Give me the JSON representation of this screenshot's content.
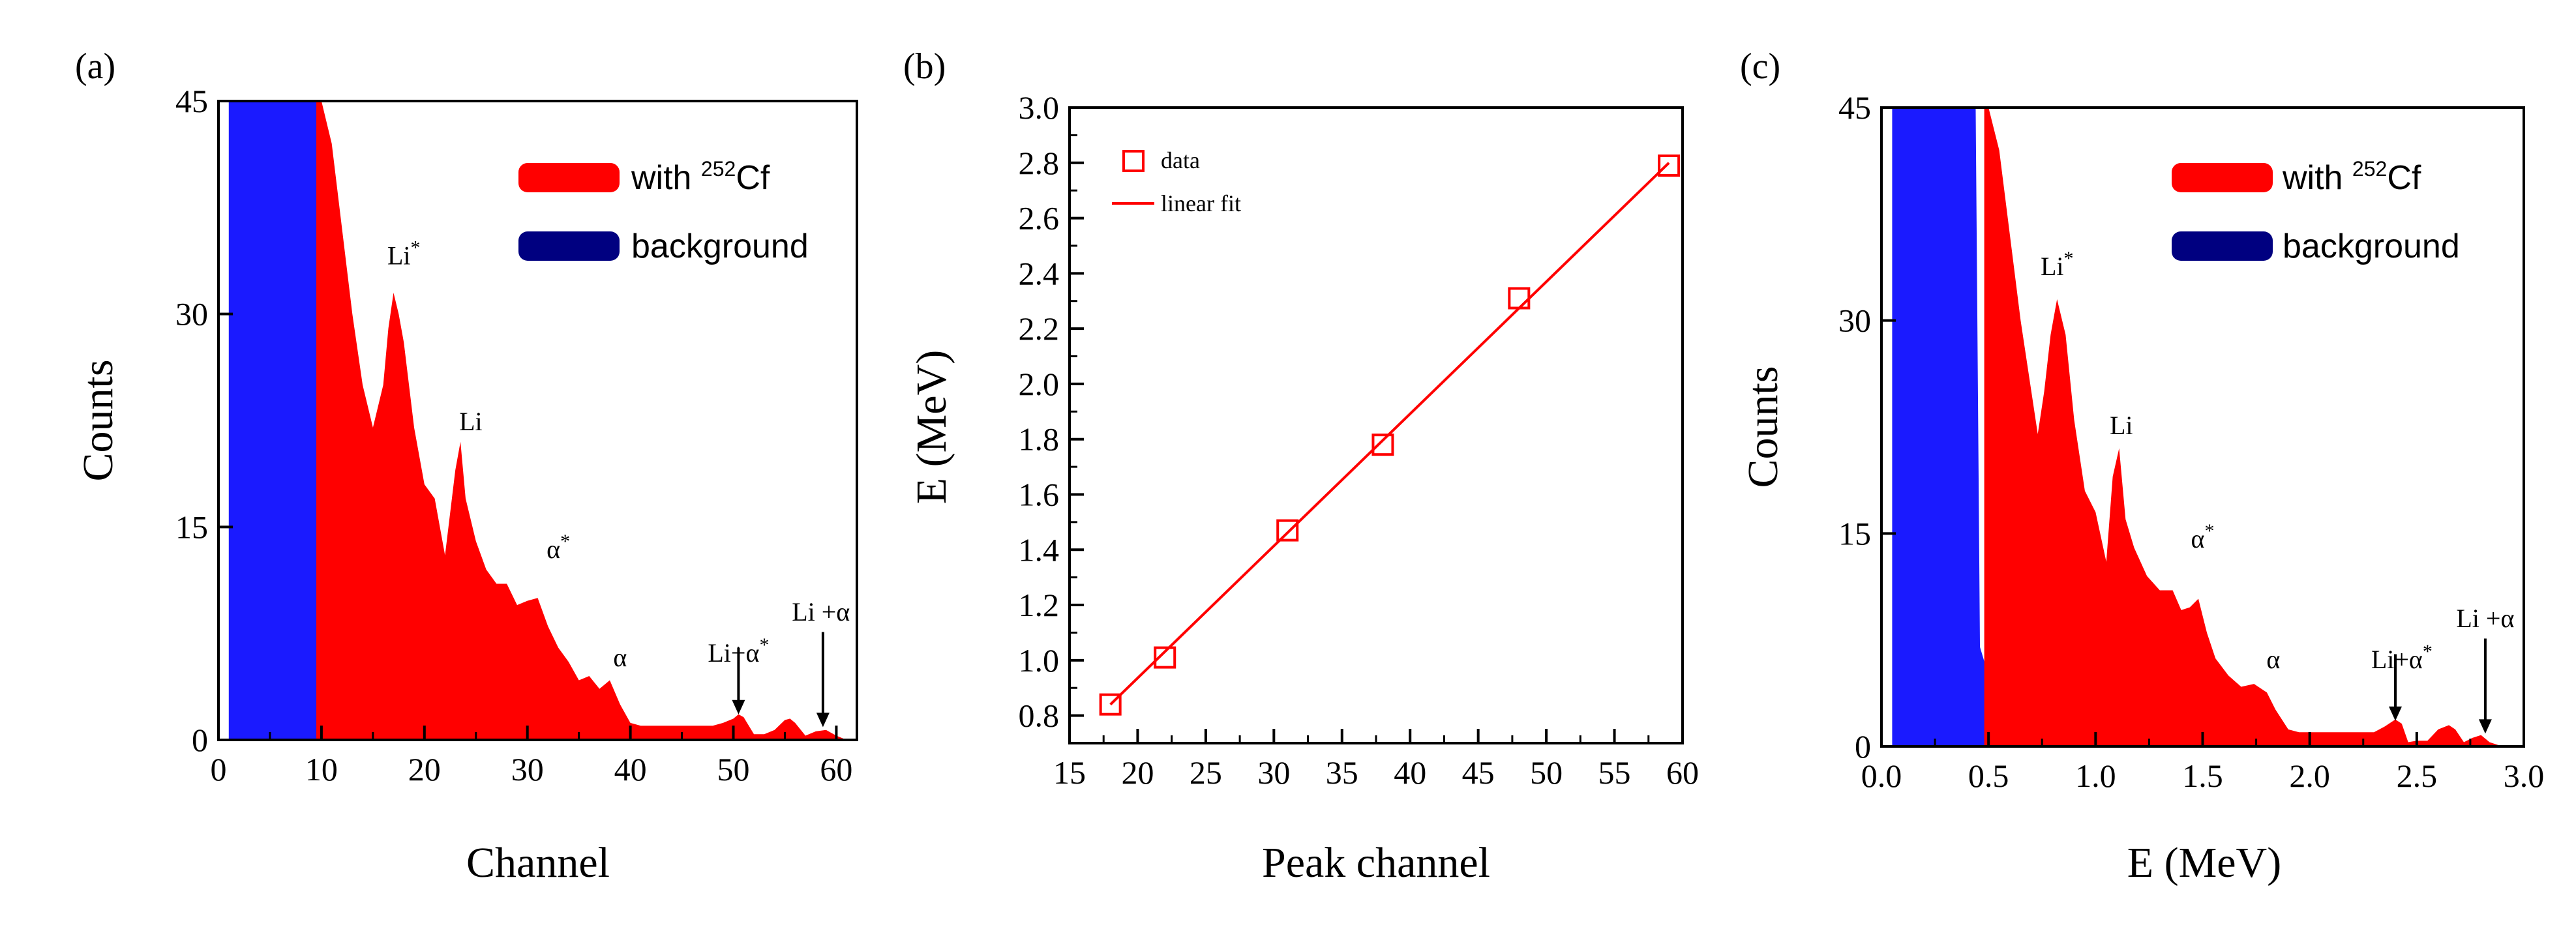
{
  "colors": {
    "signal": "#ff0000",
    "background": "#1a1aff",
    "axis": "#000000",
    "legend_bg": "#000080"
  },
  "chart_data": [
    {
      "panel": "(a)",
      "type": "area",
      "xlabel": "Channel",
      "ylabel": "Counts",
      "xlim": [
        0,
        62
      ],
      "ylim": [
        0,
        45
      ],
      "xticks": [
        0,
        10,
        20,
        30,
        40,
        50,
        60
      ],
      "xtick_labels": [
        "0",
        "10",
        "20",
        "30",
        "40",
        "50",
        "60"
      ],
      "yticks": [
        0,
        15,
        30,
        45
      ],
      "ytick_labels": [
        "0",
        "15",
        "30",
        "45"
      ],
      "legend": [
        "with 252Cf",
        "background"
      ],
      "legend_text": {
        "with_prefix": "with ",
        "isotope": "252",
        "element": "Cf",
        "background": "background"
      },
      "series": [
        {
          "name": "with 252Cf",
          "x": [
            9.5,
            10,
            11,
            12,
            13,
            14,
            15,
            16,
            16.5,
            17,
            17.5,
            18,
            19,
            20,
            21,
            22,
            23,
            23.5,
            24,
            25,
            26,
            27,
            28,
            29,
            30,
            31,
            32,
            33,
            34,
            35,
            36,
            37,
            38,
            39,
            40,
            41,
            45,
            48,
            49,
            50,
            50.5,
            51,
            52,
            53,
            54,
            55,
            55.5,
            56,
            57,
            58,
            59,
            60,
            61
          ],
          "y": [
            45,
            45,
            42,
            36,
            30,
            25,
            22,
            25,
            29,
            31.5,
            30,
            28,
            22,
            18,
            17,
            13,
            19,
            21,
            17,
            14,
            12,
            11,
            11,
            9.5,
            9.8,
            10,
            8,
            6.5,
            5.5,
            4.2,
            4.5,
            3.6,
            4.2,
            2.5,
            1.2,
            1,
            1,
            1,
            1.2,
            1.5,
            1.8,
            1.6,
            0.4,
            0.4,
            0.7,
            1.4,
            1.5,
            1.2,
            0.3,
            0.6,
            0.7,
            0.3,
            0
          ]
        },
        {
          "name": "background",
          "x": [
            1,
            10,
            10.5,
            11,
            12,
            13,
            13.5
          ],
          "y": [
            45,
            45,
            7,
            5,
            3,
            1,
            0
          ]
        }
      ],
      "annotations": [
        {
          "text": "Li",
          "sup": "*",
          "x": 18,
          "y": 33.5
        },
        {
          "text": "Li",
          "sup": "",
          "x": 24.5,
          "y": 21.8
        },
        {
          "text": "α",
          "sup": "*",
          "x": 33,
          "y": 12.8
        },
        {
          "text": "α",
          "sup": "",
          "x": 39,
          "y": 5.2
        },
        {
          "text": "Li+α",
          "sup": "*",
          "x": 50.5,
          "y": 5.5
        },
        {
          "text": "Li  +α",
          "sup": "",
          "x": 58.5,
          "y": 8.4
        }
      ],
      "arrows": [
        {
          "x": 50.5,
          "y_from": 6.5,
          "y_to": 1.8
        },
        {
          "x": 58.7,
          "y_from": 7.6,
          "y_to": 0.9
        }
      ]
    },
    {
      "panel": "(b)",
      "type": "scatter",
      "xlabel": "Peak channel",
      "ylabel": "E (MeV)",
      "xlim": [
        15,
        60
      ],
      "ylim": [
        0.7,
        3.0
      ],
      "xticks": [
        15,
        20,
        25,
        30,
        35,
        40,
        45,
        50,
        55,
        60
      ],
      "xtick_labels": [
        "15",
        "20",
        "25",
        "30",
        "35",
        "40",
        "45",
        "50",
        "55",
        "60"
      ],
      "yticks": [
        0.8,
        1.0,
        1.2,
        1.4,
        1.6,
        1.8,
        2.0,
        2.2,
        2.4,
        2.6,
        2.8,
        3.0
      ],
      "ytick_labels": [
        "0.8",
        "1.0",
        "1.2",
        "1.4",
        "1.6",
        "1.8",
        "2.0",
        "2.2",
        "2.4",
        "2.6",
        "2.8",
        "3.0"
      ],
      "legend": [
        "data",
        "linear fit"
      ],
      "series": [
        {
          "name": "data",
          "x": [
            18,
            22,
            31,
            38,
            48,
            59
          ],
          "y": [
            0.84,
            1.01,
            1.47,
            1.78,
            2.31,
            2.79
          ]
        },
        {
          "name": "linear fit",
          "x": [
            18,
            59
          ],
          "y": [
            0.84,
            2.8
          ]
        }
      ]
    },
    {
      "panel": "(c)",
      "type": "area",
      "xlabel": "E (MeV)",
      "ylabel": "Counts",
      "xlim": [
        0.0,
        3.0
      ],
      "ylim": [
        0,
        45
      ],
      "xticks": [
        0.0,
        0.5,
        1.0,
        1.5,
        2.0,
        2.5,
        3.0
      ],
      "xtick_labels": [
        "0.0",
        "0.5",
        "1.0",
        "1.5",
        "2.0",
        "2.5",
        "3.0"
      ],
      "yticks": [
        0,
        15,
        30,
        45
      ],
      "ytick_labels": [
        "0",
        "15",
        "30",
        "45"
      ],
      "legend": [
        "with 252Cf",
        "background"
      ],
      "legend_text": {
        "with_prefix": "with ",
        "isotope": "252",
        "element": "Cf",
        "background": "background"
      },
      "series": [
        {
          "name": "with 252Cf",
          "x": [
            0.48,
            0.5,
            0.55,
            0.6,
            0.65,
            0.7,
            0.73,
            0.76,
            0.79,
            0.82,
            0.86,
            0.9,
            0.95,
            1.0,
            1.05,
            1.08,
            1.11,
            1.14,
            1.18,
            1.24,
            1.3,
            1.36,
            1.4,
            1.44,
            1.48,
            1.52,
            1.56,
            1.62,
            1.68,
            1.74,
            1.8,
            1.84,
            1.9,
            1.95,
            2.0,
            2.3,
            2.35,
            2.4,
            2.43,
            2.46,
            2.5,
            2.55,
            2.6,
            2.65,
            2.68,
            2.72,
            2.76,
            2.8,
            2.84,
            2.9
          ],
          "y": [
            45,
            45,
            42,
            36,
            30,
            25,
            22,
            25,
            29,
            31.5,
            29,
            23,
            18,
            16.5,
            13,
            19,
            21,
            16,
            14,
            12,
            11,
            11,
            9.6,
            9.8,
            10.4,
            8,
            6.2,
            5,
            4.2,
            4.4,
            3.8,
            2.6,
            1.2,
            1,
            1,
            1,
            1.4,
            1.9,
            1.6,
            0.3,
            0.4,
            0.4,
            1.2,
            1.5,
            1.2,
            0.3,
            0.6,
            0.8,
            0.3,
            0
          ]
        },
        {
          "name": "background",
          "x": [
            0.05,
            0.44,
            0.46,
            0.5,
            0.55,
            0.6,
            0.63
          ],
          "y": [
            45,
            45,
            7,
            5,
            3,
            1,
            0
          ]
        }
      ],
      "annotations": [
        {
          "text": "Li",
          "sup": "*",
          "x": 0.82,
          "y": 33.2
        },
        {
          "text": "Li",
          "sup": "",
          "x": 1.12,
          "y": 22
        },
        {
          "text": "α",
          "sup": "*",
          "x": 1.5,
          "y": 14
        },
        {
          "text": "α",
          "sup": "",
          "x": 1.83,
          "y": 5.5
        },
        {
          "text": "Li+α",
          "sup": "*",
          "x": 2.43,
          "y": 5.5
        },
        {
          "text": "Li  +α",
          "sup": "",
          "x": 2.82,
          "y": 8.4
        }
      ],
      "arrows": [
        {
          "x": 2.4,
          "y_from": 6.5,
          "y_to": 1.8
        },
        {
          "x": 2.82,
          "y_from": 7.6,
          "y_to": 0.9
        }
      ]
    }
  ]
}
